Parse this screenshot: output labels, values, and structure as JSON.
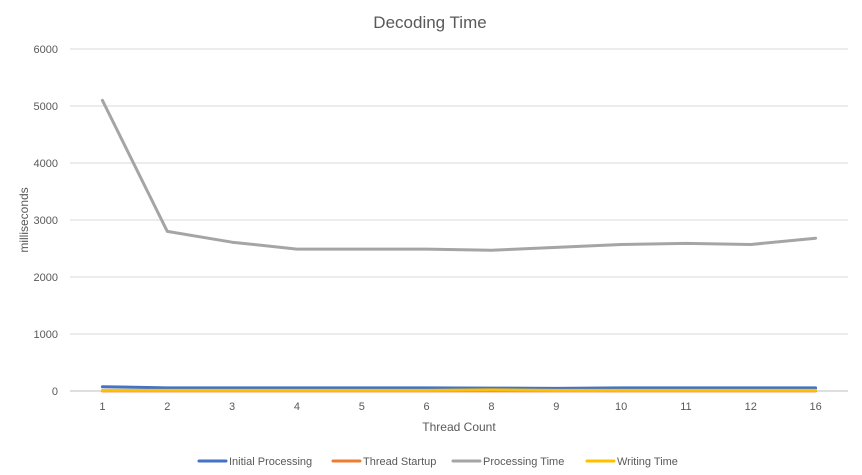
{
  "chart_data": {
    "type": "line",
    "title": "Decoding Time",
    "xlabel": "Thread Count",
    "ylabel": "milliseconds",
    "categories": [
      "1",
      "2",
      "3",
      "4",
      "5",
      "6",
      "8",
      "9",
      "10",
      "11",
      "12",
      "16"
    ],
    "ylim": [
      0,
      6000
    ],
    "yticks": [
      0,
      1000,
      2000,
      3000,
      4000,
      5000,
      6000
    ],
    "grid": true,
    "legend_position": "bottom",
    "series": [
      {
        "name": "Initial Processing",
        "color": "#4472C4",
        "values": [
          75,
          55,
          55,
          55,
          55,
          55,
          50,
          45,
          55,
          55,
          55,
          55
        ]
      },
      {
        "name": "Thread Startup",
        "color": "#ED7D31",
        "values": [
          2,
          2,
          2,
          2,
          2,
          2,
          2,
          2,
          2,
          2,
          2,
          2
        ]
      },
      {
        "name": "Processing Time",
        "color": "#A5A5A5",
        "values": [
          5100,
          2800,
          2610,
          2490,
          2490,
          2490,
          2470,
          2520,
          2570,
          2590,
          2570,
          2680
        ]
      },
      {
        "name": "Writing Time",
        "color": "#FFC000",
        "values": [
          10,
          10,
          10,
          10,
          10,
          10,
          20,
          10,
          10,
          10,
          10,
          10
        ]
      }
    ]
  }
}
